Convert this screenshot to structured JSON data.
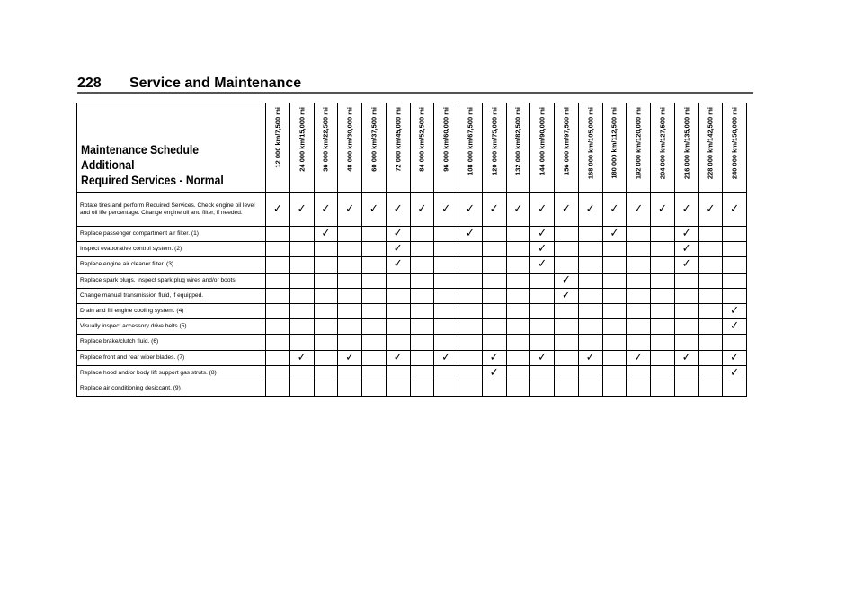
{
  "page_header": {
    "page_number": "228",
    "section_title": "Service and Maintenance"
  },
  "table": {
    "title_line1": "Maintenance Schedule Additional",
    "title_line2": "Required Services - Normal",
    "check_symbol": "✓",
    "columns": [
      "12 000 km/7,500 mi",
      "24 000 km/15,000 mi",
      "36 000 km/22,500 mi",
      "48 000 km/30,000 mi",
      "60 000 km/37,500 mi",
      "72 000 km/45,000 mi",
      "84 000 km/52,500 mi",
      "96 000 km/60,000 mi",
      "108 000 km/67,500 mi",
      "120 000 km/75,000 mi",
      "132 000 km/82,500 mi",
      "144 000 km/90,000 mi",
      "156 000 km/97,500 mi",
      "168 000 km/105,000 mi",
      "180 000 km/112,500 mi",
      "192 000 km/120,000 mi",
      "204 000 km/127,500 mi",
      "216 000 km/135,000 mi",
      "228 000 km/142,500 mi",
      "240 000 km/150,000 mi"
    ],
    "rows": [
      {
        "label": "Rotate tires and perform Required Services. Check engine oil level and oil life percentage. Change engine oil and filter, if needed.",
        "checks": [
          0,
          1,
          2,
          3,
          4,
          5,
          6,
          7,
          8,
          9,
          10,
          11,
          12,
          13,
          14,
          15,
          16,
          17,
          18,
          19
        ]
      },
      {
        "label": "Replace passenger compartment air filter. (1)",
        "checks": [
          2,
          5,
          8,
          11,
          14,
          17
        ]
      },
      {
        "label": "Inspect evaporative control system. (2)",
        "checks": [
          5,
          11,
          17
        ]
      },
      {
        "label": "Replace engine air cleaner filter. (3)",
        "checks": [
          5,
          11,
          17
        ]
      },
      {
        "label": "Replace spark plugs. Inspect spark plug wires and/or boots.",
        "checks": [
          12
        ]
      },
      {
        "label": "Change manual transmission fluid, if equipped.",
        "checks": [
          12
        ]
      },
      {
        "label": "Drain and fill engine cooling system. (4)",
        "checks": [
          19
        ]
      },
      {
        "label": "Visually inspect accessory drive belts (5)",
        "checks": [
          19
        ]
      },
      {
        "label": "Replace brake/clutch fluid. (6)",
        "checks": []
      },
      {
        "label": "Replace front and rear wiper blades. (7)",
        "checks": [
          1,
          3,
          5,
          7,
          9,
          11,
          13,
          15,
          17,
          19
        ]
      },
      {
        "label": "Replace hood and/or body lift support gas struts. (8)",
        "checks": [
          9,
          19
        ]
      },
      {
        "label": "Replace air conditioning desiccant. (9)",
        "checks": []
      }
    ]
  }
}
